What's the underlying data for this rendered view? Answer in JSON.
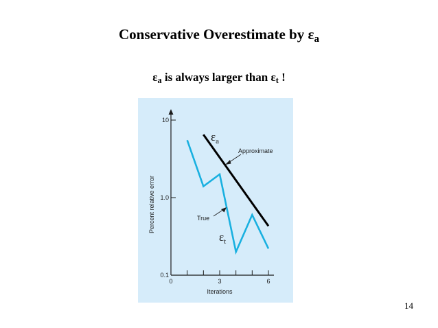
{
  "slide": {
    "title_text": "Conservative Overestimate by ",
    "title_symbol": "ε",
    "title_symbol_sub": "a",
    "line2_symbol1": "ε",
    "line2_sub1": "a",
    "line2_middle": " is always larger than ",
    "line2_symbol2": "ε",
    "line2_sub2": "t",
    "line2_end": " !",
    "page_number": "14"
  },
  "colors": {
    "figure_background": "#d6ecfa",
    "true_line": "#19b0e0",
    "approximate_line": "#000000"
  },
  "chart_data": {
    "type": "line",
    "ylabel": "Percent relative error",
    "xlabel": "Iterations",
    "y_scale": "log",
    "ylim": [
      0.1,
      10
    ],
    "xlim": [
      0,
      6
    ],
    "x_ticks": [
      0,
      1,
      2,
      3,
      4,
      5,
      6
    ],
    "x_tick_labels": [
      "0",
      "",
      "",
      "3",
      "",
      "",
      "6"
    ],
    "y_ticks": [
      0.1,
      1.0,
      10
    ],
    "y_tick_labels": [
      "0.1",
      "1.0",
      "10"
    ],
    "grid": false,
    "series": [
      {
        "name": "Approximate",
        "color": "#000000",
        "x": [
          2,
          6
        ],
        "y": [
          6.5,
          0.43
        ]
      },
      {
        "name": "True",
        "color": "#19b0e0",
        "x": [
          1,
          2,
          3,
          4,
          5,
          6
        ],
        "y": [
          5.5,
          1.4,
          2.0,
          0.2,
          0.6,
          0.22
        ]
      }
    ],
    "annotations": [
      {
        "text": "Approximate",
        "target_series": "Approximate"
      },
      {
        "text": "True",
        "target_series": "True"
      },
      {
        "symbol": "ε",
        "sub": "a"
      },
      {
        "symbol": "ε",
        "sub": "t"
      }
    ]
  }
}
